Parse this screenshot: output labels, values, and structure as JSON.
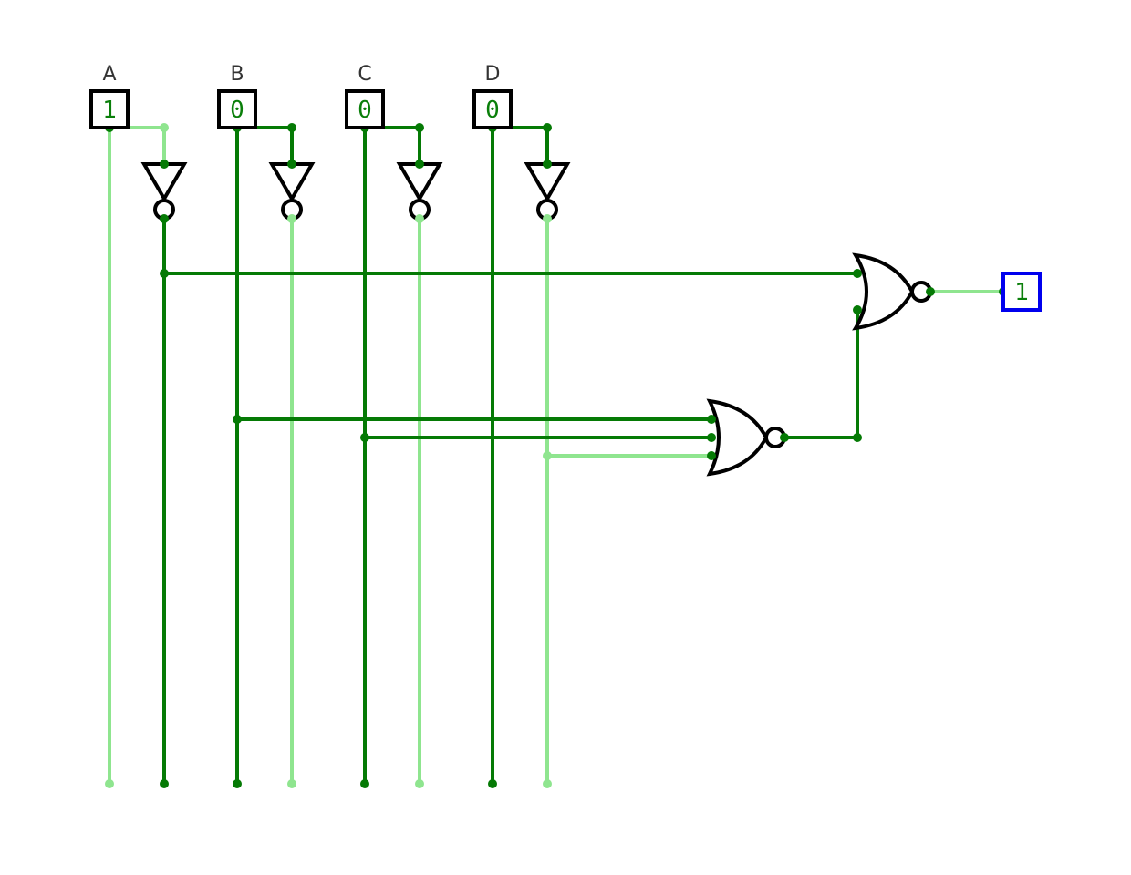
{
  "colors": {
    "wire_high": "#8fe58f",
    "wire_low": "#057a05",
    "value_text": "#0a7f0a",
    "gate_stroke": "#000000",
    "input_box": "#000000",
    "output_box": "#0000ee"
  },
  "inputs": [
    {
      "label": "A",
      "value": "1"
    },
    {
      "label": "B",
      "value": "0"
    },
    {
      "label": "C",
      "value": "0"
    },
    {
      "label": "D",
      "value": "0"
    }
  ],
  "output": {
    "value": "1"
  },
  "gates": [
    {
      "type": "NOT",
      "input": "A"
    },
    {
      "type": "NOT",
      "input": "B"
    },
    {
      "type": "NOT",
      "input": "C"
    },
    {
      "type": "NOT",
      "input": "D"
    },
    {
      "type": "NOR",
      "inputs": [
        "B",
        "C",
        "NOT D"
      ]
    },
    {
      "type": "NOR",
      "inputs": [
        "NOT A",
        "NOR(B, C, NOT D)"
      ]
    }
  ]
}
